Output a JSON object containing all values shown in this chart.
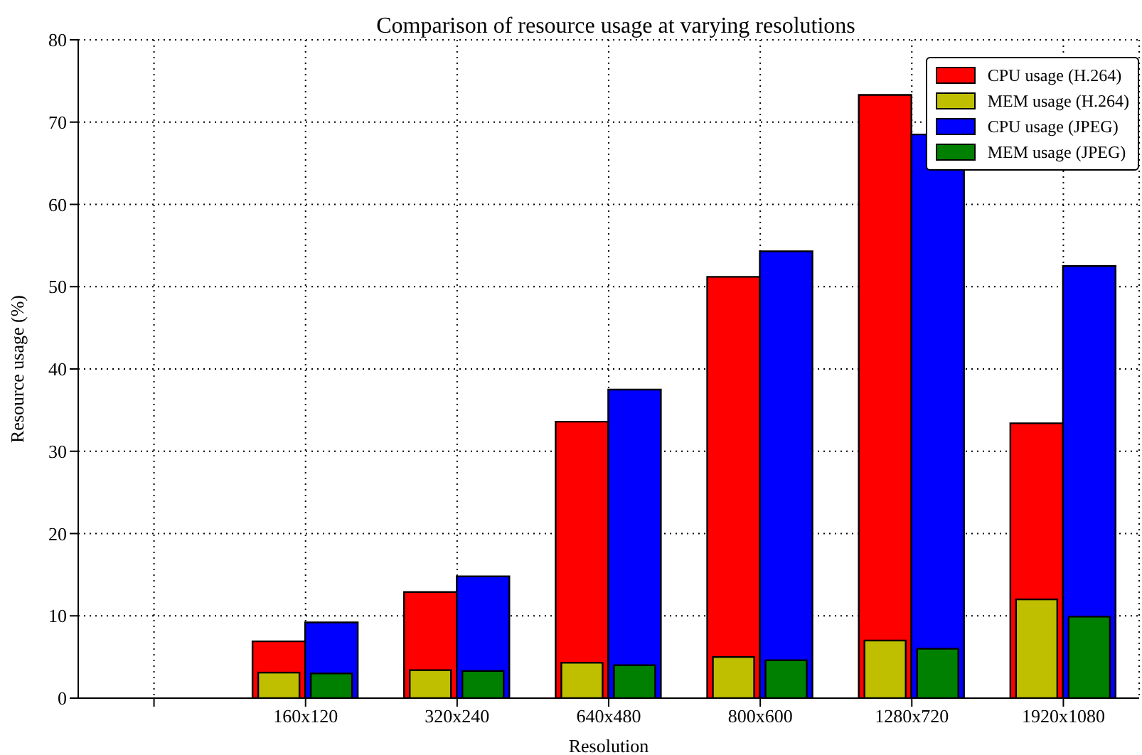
{
  "chart_data": {
    "type": "bar",
    "title": "Comparison of resource usage at varying resolutions",
    "xlabel": "Resolution",
    "ylabel": "Resource usage (%)",
    "categories": [
      null,
      "160x120",
      "320x240",
      "640x480",
      "800x600",
      "1280x720",
      "1920x1080"
    ],
    "series": [
      {
        "name": "CPU usage (H.264)",
        "color": "#ff0000",
        "values": [
          null,
          6.9,
          12.9,
          33.6,
          51.2,
          73.3,
          33.4
        ]
      },
      {
        "name": "MEM usage (H.264)",
        "color": "#bfbf00",
        "values": [
          null,
          3.1,
          3.4,
          4.3,
          5.0,
          7.0,
          12.0
        ]
      },
      {
        "name": "CPU usage (JPEG)",
        "color": "#0000ff",
        "values": [
          null,
          9.2,
          14.8,
          37.5,
          54.3,
          68.5,
          52.5
        ]
      },
      {
        "name": "MEM usage (JPEG)",
        "color": "#008000",
        "values": [
          null,
          3.0,
          3.3,
          4.0,
          4.6,
          6.0,
          9.9
        ]
      }
    ],
    "ylim": [
      0,
      80
    ],
    "yticks": [
      0,
      10,
      20,
      30,
      40,
      50,
      60,
      70,
      80
    ],
    "grid": true,
    "legend": "top right"
  }
}
